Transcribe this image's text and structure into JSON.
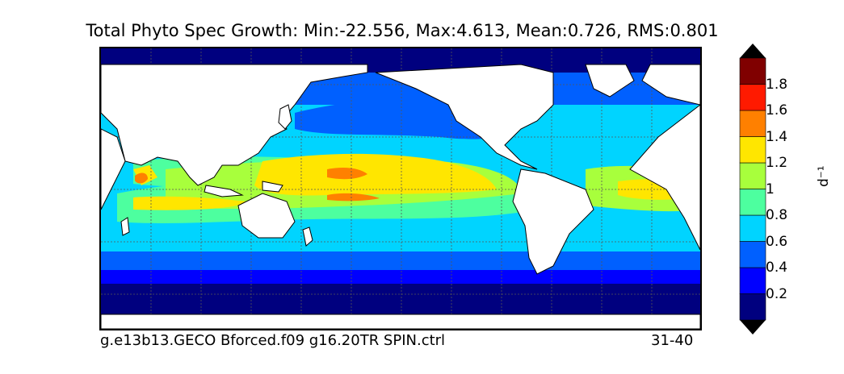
{
  "title": "Total Phyto Spec Growth: Min:-22.556, Max:4.613, Mean:0.726, RMS:0.801",
  "caption": "g.e13b13.GECO Bforced.f09 g16.20TR SPIN.ctrl",
  "period": "31-40",
  "colorbar": {
    "unit": "d⁻¹",
    "levels": [
      {
        "color": "#00007f"
      },
      {
        "color": "#0000ff"
      },
      {
        "color": "#0060ff"
      },
      {
        "color": "#00d4ff"
      },
      {
        "color": "#4dff9f"
      },
      {
        "color": "#a8ff3c"
      },
      {
        "color": "#ffe600"
      },
      {
        "color": "#ff8000"
      },
      {
        "color": "#ff1a00"
      },
      {
        "color": "#800000"
      }
    ],
    "tick_labels": [
      "0.2",
      "0.4",
      "0.6",
      "0.8",
      "1",
      "1.2",
      "1.4",
      "1.6",
      "1.8"
    ],
    "extend": "both"
  },
  "map": {
    "projection": "cylindrical",
    "longitude_range": "20E-380E (Pacific centered)",
    "latitude_range": [
      -80,
      90
    ],
    "land_color": "#ffffff",
    "gridlines": "dashed"
  }
}
